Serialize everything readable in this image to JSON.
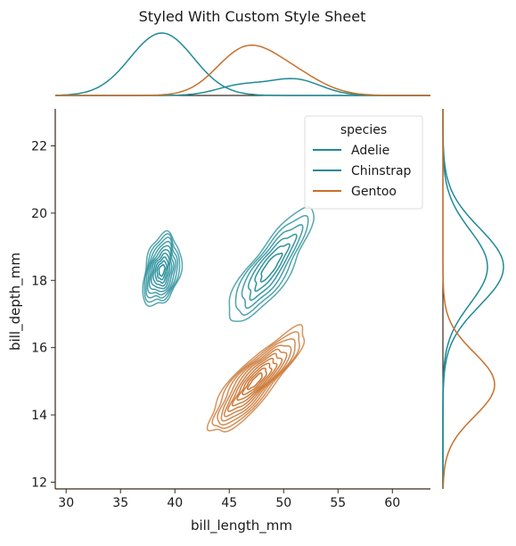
{
  "chart_data": {
    "type": "kde-jointplot",
    "title": "Styled With Custom Style Sheet",
    "xlabel": "bill_length_mm",
    "ylabel": "bill_depth_mm",
    "xlim": [
      29,
      63.5
    ],
    "ylim": [
      11.8,
      23.1
    ],
    "xticks": [
      30,
      35,
      40,
      45,
      50,
      55,
      60
    ],
    "yticks": [
      12,
      14,
      16,
      18,
      20,
      22
    ],
    "grid": false,
    "legend": {
      "title": "species",
      "placement": "top-right"
    },
    "series": [
      {
        "name": "Adelie",
        "color": "#1f8a96",
        "center": [
          38.8,
          18.3
        ],
        "spread": [
          3.0,
          1.45
        ],
        "rotation_deg": 78,
        "levels": 10,
        "marginal_x_peak": 38.8,
        "marginal_y_peak": 18.4
      },
      {
        "name": "Chinstrap",
        "color": "#1f8a96",
        "center": [
          48.8,
          18.4
        ],
        "spread": [
          5.6,
          1.55
        ],
        "rotation_deg": 55,
        "levels": 6,
        "marginal_x_peak": 50.5,
        "marginal_y_peak": 18.4
      },
      {
        "name": "Gentoo",
        "color": "#c8702a",
        "center": [
          47.4,
          15.0
        ],
        "spread": [
          5.6,
          1.5
        ],
        "rotation_deg": 48,
        "levels": 10,
        "marginal_x_peak": 46.5,
        "marginal_y_peak": 14.9
      }
    ]
  }
}
